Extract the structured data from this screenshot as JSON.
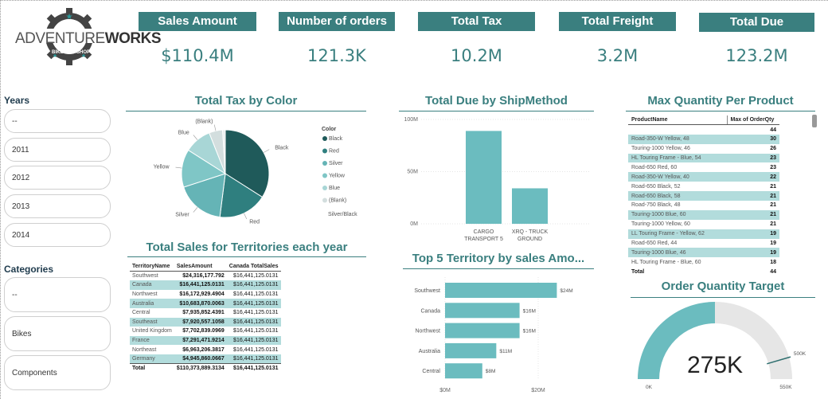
{
  "logo": {
    "text_a": "ADVENTURE",
    "text_b": "WORKS",
    "ring_left": "BIKE",
    "ring_right": "SHOP"
  },
  "kpis": [
    {
      "title": "Sales Amount",
      "value": "$110.4M"
    },
    {
      "title": "Number of orders",
      "value": "121.3K"
    },
    {
      "title": "Total Tax",
      "value": "10.2M"
    },
    {
      "title": "Total Freight",
      "value": "3.2M"
    },
    {
      "title": "Total Due",
      "value": "123.2M"
    }
  ],
  "slicers": {
    "years": {
      "title": "Years",
      "items": [
        "--",
        "2011",
        "2012",
        "2013",
        "2014"
      ]
    },
    "categories": {
      "title": "Categories",
      "items": [
        "--",
        "Bikes",
        "Components"
      ]
    }
  },
  "colors": {
    "teal_dark": "#3a7f7f",
    "teal_bar": "#6bbcbf",
    "teal_light": "#b2dcdc",
    "gauge_rest": "#e6e6e6"
  },
  "pie": {
    "title": "Total Tax by Color",
    "legend_title": "Color",
    "chart_data": {
      "type": "pie",
      "labels": [
        "Black",
        "Red",
        "Silver",
        "Yellow",
        "Blue",
        "(Blank)",
        "Silver/Black"
      ],
      "values": [
        34,
        18,
        18,
        14,
        10,
        5,
        1
      ],
      "colors": [
        "#1f5a5a",
        "#2f7f7f",
        "#65b4b6",
        "#7fc6c6",
        "#a8d6d6",
        "#d3dede",
        "#e8eeee"
      ]
    }
  },
  "shipmethod": {
    "title": "Total Due by ShipMethod",
    "chart_data": {
      "type": "bar",
      "categories": [
        "CARGO TRANSPORT 5",
        "XRQ - TRUCK GROUND"
      ],
      "category_lines": [
        [
          "CARGO",
          "TRANSPORT 5"
        ],
        [
          "XRQ - TRUCK",
          "GROUND"
        ]
      ],
      "values": [
        89,
        34
      ],
      "yticks": [
        "100M",
        "50M",
        "0M"
      ],
      "ylim": [
        0,
        100
      ]
    }
  },
  "maxqty": {
    "title": "Max Quantity Per Product",
    "headers": [
      "ProductName",
      "Max of OrderQty"
    ],
    "rows": [
      [
        "",
        "44"
      ],
      [
        "Road-350-W Yellow, 48",
        "30"
      ],
      [
        "Touring-1000 Yellow, 46",
        "26"
      ],
      [
        "HL Touring Frame - Blue, 54",
        "23"
      ],
      [
        "Road-650 Red, 60",
        "23"
      ],
      [
        "Road-350-W Yellow, 40",
        "22"
      ],
      [
        "Road-650 Black, 52",
        "21"
      ],
      [
        "Road-650 Black, 58",
        "21"
      ],
      [
        "Road-750 Black, 48",
        "21"
      ],
      [
        "Touring-1000 Blue, 60",
        "21"
      ],
      [
        "Touring-1000 Yellow, 60",
        "21"
      ],
      [
        "LL Touring Frame - Yellow, 62",
        "19"
      ],
      [
        "Road-650 Red, 44",
        "19"
      ],
      [
        "Touring-1000 Blue, 46",
        "19"
      ],
      [
        "HL Touring Frame - Blue, 60",
        "18"
      ]
    ],
    "total": [
      "Total",
      "44"
    ]
  },
  "territory_table": {
    "title": "Total Sales for Territories each year",
    "headers": [
      "TerritoryName",
      "SalesAmount",
      "Canada TotalSales"
    ],
    "rows": [
      [
        "Southwest",
        "$24,316,177.792",
        "$16,441,125.0131"
      ],
      [
        "Canada",
        "$16,441,125.0131",
        "$16,441,125.0131"
      ],
      [
        "Northwest",
        "$16,172,929.4904",
        "$16,441,125.0131"
      ],
      [
        "Australia",
        "$10,683,870.0063",
        "$16,441,125.0131"
      ],
      [
        "Central",
        "$7,935,852.4391",
        "$16,441,125.0131"
      ],
      [
        "Southeast",
        "$7,920,557.1058",
        "$16,441,125.0131"
      ],
      [
        "United Kingdom",
        "$7,702,839.0969",
        "$16,441,125.0131"
      ],
      [
        "France",
        "$7,291,471.9214",
        "$16,441,125.0131"
      ],
      [
        "Northeast",
        "$6,963,206.3817",
        "$16,441,125.0131"
      ],
      [
        "Germany",
        "$4,945,860.0667",
        "$16,441,125.0131"
      ]
    ],
    "total": [
      "Total",
      "$110,373,889.3134",
      "$16,441,125.0131"
    ]
  },
  "top5": {
    "title": "Top 5 Territory by sales Amo...",
    "chart_data": {
      "type": "bar",
      "orientation": "horizontal",
      "categories": [
        "Southwest",
        "Canada",
        "Northwest",
        "Australia",
        "Central"
      ],
      "values": [
        24,
        16,
        16,
        11,
        8
      ],
      "value_labels": [
        "$24M",
        "$16M",
        "$16M",
        "$11M",
        "$8M"
      ],
      "xticks": [
        "$0M",
        "$20M"
      ],
      "xlim": [
        0,
        20
      ]
    }
  },
  "gauge": {
    "title": "Order Quantity Target",
    "value_label": "275K",
    "min_label": "0K",
    "max_label": "550K",
    "target_label": "500K",
    "chart_data": {
      "type": "gauge",
      "value": 275,
      "min": 0,
      "max": 550,
      "target": 500
    }
  }
}
